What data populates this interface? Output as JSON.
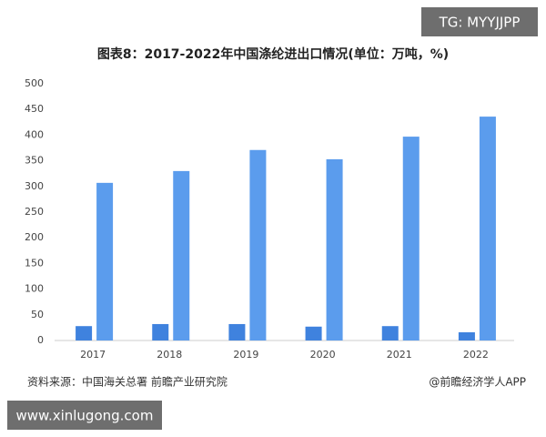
{
  "chart_data": {
    "type": "bar",
    "title": "图表8：2017-2022年中国涤纶进出口情况(单位：万吨，%)",
    "categories": [
      "2017",
      "2018",
      "2019",
      "2020",
      "2021",
      "2022"
    ],
    "series": [
      {
        "color": "#3f82de",
        "values": [
          28,
          32,
          32,
          27,
          28,
          16
        ]
      },
      {
        "color": "#5b9ced",
        "values": [
          307,
          330,
          371,
          353,
          397,
          436
        ]
      }
    ],
    "ylim": [
      0,
      500
    ],
    "yticks": [
      0,
      50,
      100,
      150,
      200,
      250,
      300,
      350,
      400,
      450,
      500
    ],
    "grid": false,
    "source": "资料来源：中国海关总署 前瞻产业研究院",
    "credit": "@前瞻经济学人APP"
  },
  "watermarks": [
    "TG: MYYJJPP",
    "www.xinlugong.com"
  ]
}
